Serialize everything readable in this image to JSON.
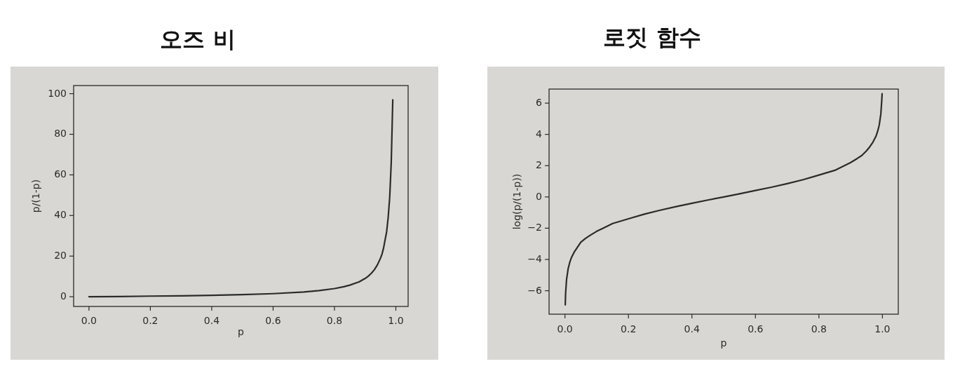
{
  "chart_data": [
    {
      "type": "line",
      "title": "오즈 비",
      "xlabel": "p",
      "ylabel": "p/(1-p)",
      "color": "#2b2b2b",
      "x": [
        0,
        0.1,
        0.2,
        0.3,
        0.4,
        0.5,
        0.6,
        0.7,
        0.75,
        0.8,
        0.83,
        0.85,
        0.88,
        0.9,
        0.91,
        0.92,
        0.93,
        0.94,
        0.95,
        0.955,
        0.96,
        0.965,
        0.97,
        0.975,
        0.98,
        0.985,
        0.99
      ],
      "values": [
        0,
        0.1,
        0.3,
        0.4,
        0.7,
        1,
        1.5,
        2.3,
        3,
        4,
        4.9,
        5.7,
        7.3,
        9,
        10.1,
        11.5,
        13.3,
        15.7,
        19,
        21,
        24,
        28,
        32,
        39,
        49,
        66,
        97
      ],
      "xlim": [
        -0.05,
        1.04
      ],
      "ylim": [
        -4.8,
        104
      ],
      "xticks": [
        {
          "value": 0,
          "label": "0.0"
        },
        {
          "value": 0.2,
          "label": "0.2"
        },
        {
          "value": 0.4,
          "label": "0.4"
        },
        {
          "value": 0.6,
          "label": "0.6"
        },
        {
          "value": 0.8,
          "label": "0.8"
        },
        {
          "value": 1,
          "label": "1.0"
        }
      ],
      "yticks": [
        0,
        20,
        40,
        60,
        80,
        100
      ]
    },
    {
      "type": "line",
      "title": "로짓 함수",
      "xlabel": "p",
      "ylabel": "log(p/(1-p))",
      "color": "#2b2b2b",
      "x": [
        0.001,
        0.002,
        0.005,
        0.01,
        0.015,
        0.02,
        0.03,
        0.04,
        0.05,
        0.065,
        0.08,
        0.1,
        0.12,
        0.15,
        0.2,
        0.25,
        0.3,
        0.35,
        0.4,
        0.45,
        0.5,
        0.55,
        0.6,
        0.65,
        0.7,
        0.75,
        0.8,
        0.85,
        0.88,
        0.9,
        0.92,
        0.935,
        0.95,
        0.96,
        0.97,
        0.98,
        0.985,
        0.99,
        0.995,
        0.998,
        0.999
      ],
      "values": [
        -6.9,
        -6.2,
        -5.3,
        -4.6,
        -4.2,
        -3.9,
        -3.5,
        -3.2,
        -2.9,
        -2.65,
        -2.45,
        -2.2,
        -2,
        -1.7,
        -1.4,
        -1.1,
        -0.85,
        -0.62,
        -0.41,
        -0.2,
        0,
        0.2,
        0.41,
        0.62,
        0.85,
        1.1,
        1.4,
        1.7,
        2,
        2.2,
        2.45,
        2.65,
        2.95,
        3.2,
        3.5,
        3.9,
        4.2,
        4.6,
        5.3,
        6.2,
        6.6
      ],
      "xlim": [
        -0.05,
        1.05
      ],
      "ylim": [
        -7.5,
        6.9
      ],
      "xticks": [
        {
          "value": 0,
          "label": "0.0"
        },
        {
          "value": 0.2,
          "label": "0.2"
        },
        {
          "value": 0.4,
          "label": "0.4"
        },
        {
          "value": 0.6,
          "label": "0.6"
        },
        {
          "value": 0.8,
          "label": "0.8"
        },
        {
          "value": 1,
          "label": "1.0"
        }
      ],
      "yticks": [
        {
          "value": -6,
          "label": "−6"
        },
        {
          "value": -4,
          "label": "−4"
        },
        {
          "value": -2,
          "label": "−2"
        },
        0,
        2,
        4,
        6
      ]
    }
  ]
}
